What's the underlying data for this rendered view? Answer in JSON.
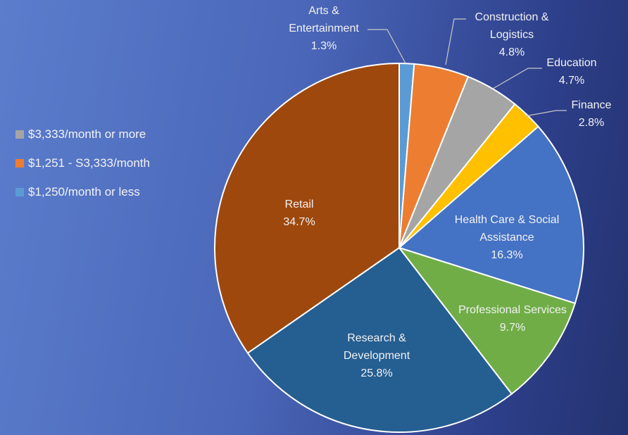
{
  "chart_data": {
    "type": "pie",
    "categories": [
      "Arts & Entertainment",
      "Construction & Logistics",
      "Education",
      "Finance",
      "Health Care & Social Assistance",
      "Professional Services",
      "Research & Development",
      "Retail"
    ],
    "values": [
      1.3,
      4.8,
      4.7,
      2.8,
      16.3,
      9.7,
      25.8,
      34.7
    ],
    "value_labels": [
      "1.3%",
      "4.8%",
      "4.7%",
      "2.8%",
      "16.3%",
      "9.7%",
      "25.8%",
      "34.7%"
    ],
    "colors": [
      "#5b9bd5",
      "#ed7d31",
      "#a5a5a5",
      "#ffc000",
      "#4472c4",
      "#70ad47",
      "#255e91",
      "#9e480e"
    ],
    "legend": [
      {
        "name": "$3,333/month or more",
        "color": "#a5a5a5"
      },
      {
        "name": "$1,251 - S3,333/month",
        "color": "#ed7d31"
      },
      {
        "name": "$1,250/month or less",
        "color": "#5b9bd5"
      }
    ]
  }
}
